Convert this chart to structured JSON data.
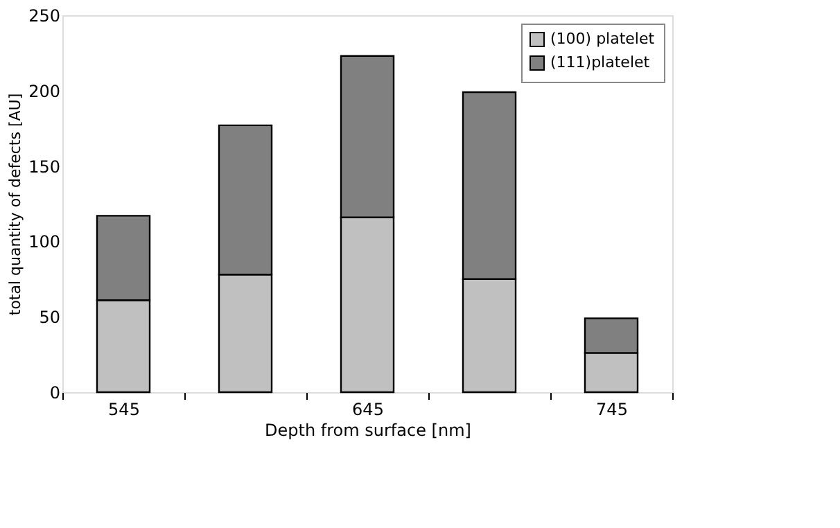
{
  "chart_data": {
    "type": "bar",
    "stacked": true,
    "xlabel": "Depth from surface  [nm]",
    "ylabel": "total quantity of defects [AU]",
    "categories": [
      "545",
      null,
      "645",
      null,
      "745"
    ],
    "series": [
      {
        "name": "(100) platelet",
        "color": "#c0c0c0",
        "values": [
          61,
          78,
          116,
          75,
          26
        ]
      },
      {
        "name": "(111)platelet",
        "color": "#808080",
        "values": [
          56,
          99,
          107,
          124,
          23
        ]
      }
    ],
    "ylim": [
      0,
      250
    ],
    "yticks": [
      0,
      50,
      100,
      150,
      200,
      250
    ],
    "grid": false,
    "legend": "top right"
  }
}
